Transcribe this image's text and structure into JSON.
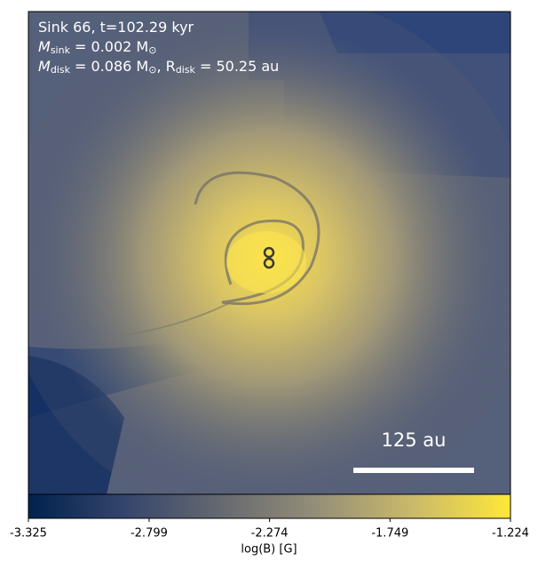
{
  "chart_data": {
    "type": "image",
    "annotation_lines": [
      [
        {
          "text": "Sink 66, t=102.29 kyr"
        }
      ],
      [
        {
          "text": "M"
        },
        {
          "text": "sink",
          "sub": true
        },
        {
          "text": " = 0.002 M"
        },
        {
          "text": "⊙",
          "sub": true
        }
      ],
      [
        {
          "text": "M"
        },
        {
          "text": "disk",
          "sub": true
        },
        {
          "text": " = 0.086 M"
        },
        {
          "text": "⊙",
          "sub": true
        },
        {
          "text": ", R"
        },
        {
          "text": "disk",
          "sub": true
        },
        {
          "text": " = 50.25 au"
        }
      ]
    ],
    "scale_bar_label": "125 au",
    "colorbar_label": "log(B) [G]",
    "clim": [
      -3.325,
      -1.224
    ],
    "cticks": [
      -3.325,
      -2.799,
      -2.274,
      -1.749,
      -1.224
    ],
    "colormap": [
      "#00224e",
      "#35456c",
      "#666970",
      "#958f78",
      "#cbba69",
      "#fee838"
    ]
  }
}
